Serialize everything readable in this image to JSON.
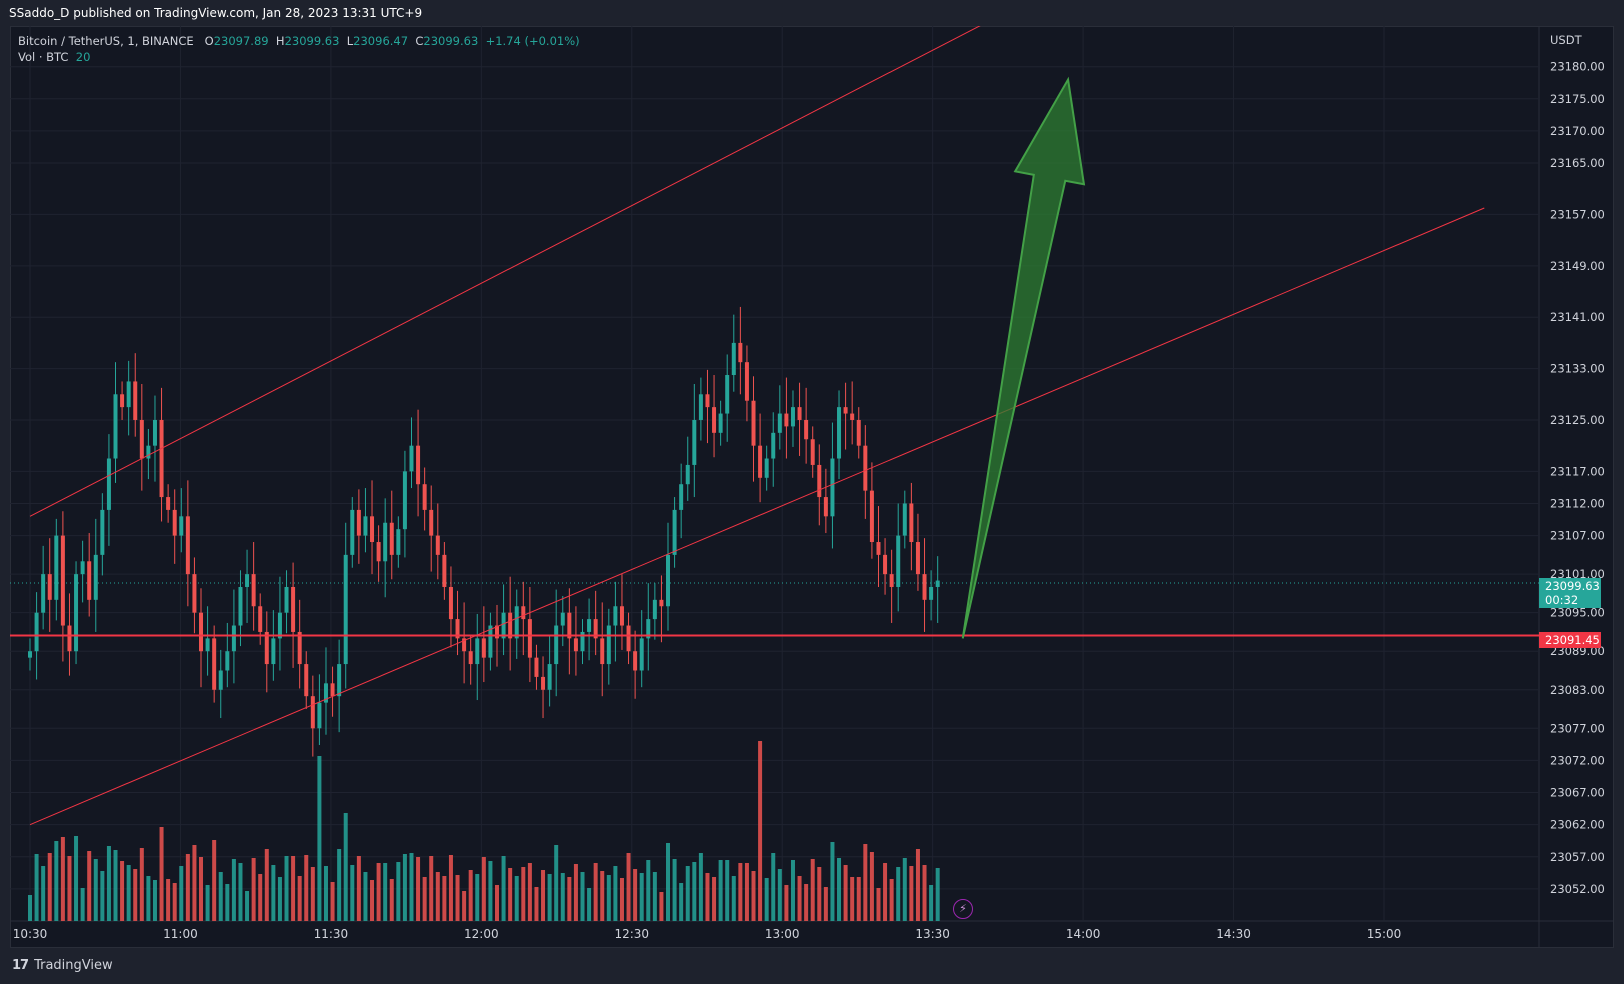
{
  "header": {
    "published_line": "SSaddo_D published on TradingView.com, Jan 28, 2023 13:31 UTC+9"
  },
  "legend": {
    "symbol": "Bitcoin / TetherUS, 1, BINANCE",
    "o_label": "O",
    "o_value": "23097.89",
    "h_label": "H",
    "h_value": "23099.63",
    "l_label": "L",
    "l_value": "23096.47",
    "c_label": "C",
    "c_value": "23099.63",
    "change": "+1.74 (+0.01%)",
    "volume_label": "Vol · BTC",
    "volume_value": "20"
  },
  "price_axis": {
    "currency": "USDT",
    "ticks": [
      "23180.00",
      "23175.00",
      "23170.00",
      "23165.00",
      "23157.00",
      "23149.00",
      "23141.00",
      "23133.00",
      "23125.00",
      "23117.00",
      "23112.00",
      "23107.00",
      "23101.00",
      "23095.00",
      "23089.00",
      "23083.00",
      "23077.00",
      "23072.00",
      "23067.00",
      "23062.00",
      "23057.00",
      "23052.00"
    ],
    "current_price": "23099.63",
    "countdown": "00:32",
    "horizontal_line_price": "23091.45"
  },
  "time_axis": {
    "ticks": [
      "10:30",
      "11:00",
      "11:30",
      "12:00",
      "12:30",
      "13:00",
      "13:30",
      "14:00",
      "14:30",
      "15:00"
    ]
  },
  "colors": {
    "up": "#26a69a",
    "down": "#ef5350",
    "trend_line": "#f23645",
    "arrow_fill": "#2e7d32",
    "background": "#131722"
  },
  "footer": {
    "brand_logo": "17",
    "brand_name": "TradingView",
    "bolt_icon": "⚡"
  },
  "chart_data": {
    "type": "candlestick",
    "symbol": "Bitcoin / TetherUS, 1, BINANCE",
    "x_range": [
      "10:30",
      "15:00"
    ],
    "y_range": [
      23047,
      23184
    ],
    "first_candle_time": "10:30",
    "last_candle_time": "13:31",
    "closes": [
      23089,
      23095,
      23101,
      23097,
      23107,
      23093,
      23089,
      23101,
      23103,
      23097,
      23104,
      23111,
      23119,
      23129,
      23127,
      23131,
      23125,
      23119,
      23121,
      23125,
      23113,
      23111,
      23107,
      23110,
      23101,
      23095,
      23089,
      23091,
      23083,
      23086,
      23089,
      23093,
      23099,
      23101,
      23096,
      23092,
      23087,
      23091,
      23095,
      23099,
      23092,
      23087,
      23082,
      23077,
      23081,
      23084,
      23082,
      23087,
      23104,
      23111,
      23107,
      23110,
      23106,
      23103,
      23109,
      23104,
      23108,
      23117,
      23121,
      23115,
      23111,
      23107,
      23104,
      23099,
      23094,
      23091,
      23089,
      23087,
      23091,
      23088,
      23093,
      23091,
      23095,
      23091,
      23096,
      23094,
      23088,
      23085,
      23083,
      23087,
      23093,
      23095,
      23091,
      23089,
      23092,
      23094,
      23091,
      23087,
      23093,
      23096,
      23093,
      23089,
      23086,
      23091,
      23094,
      23097,
      23096,
      23104,
      23111,
      23115,
      23118,
      23125,
      23129,
      23127,
      23123,
      23126,
      23132,
      23137,
      23134,
      23128,
      23121,
      23116,
      23119,
      23123,
      23126,
      23124,
      23127,
      23125,
      23122,
      23118,
      23113,
      23110,
      23119,
      23127,
      23126,
      23125,
      23121,
      23114,
      23106,
      23104,
      23101,
      23099,
      23107,
      23112,
      23106,
      23101,
      23097,
      23099,
      23100
    ],
    "volume_hint": "volume histogram at chart bottom; largest bar near 13:12",
    "drawings": [
      {
        "type": "trend_line",
        "from": {
          "time": "10:30",
          "price": 23110
        },
        "to": {
          "time": "13:41",
          "price": 23187
        }
      },
      {
        "type": "trend_line",
        "from": {
          "time": "10:30",
          "price": 23062
        },
        "to": {
          "time": "15:20",
          "price": 23158
        }
      },
      {
        "type": "horizontal_line",
        "price": 23091.45
      },
      {
        "type": "arrow",
        "from": {
          "time": "13:36",
          "price": 23091
        },
        "to": {
          "time": "13:57",
          "price": 23178
        }
      }
    ]
  }
}
